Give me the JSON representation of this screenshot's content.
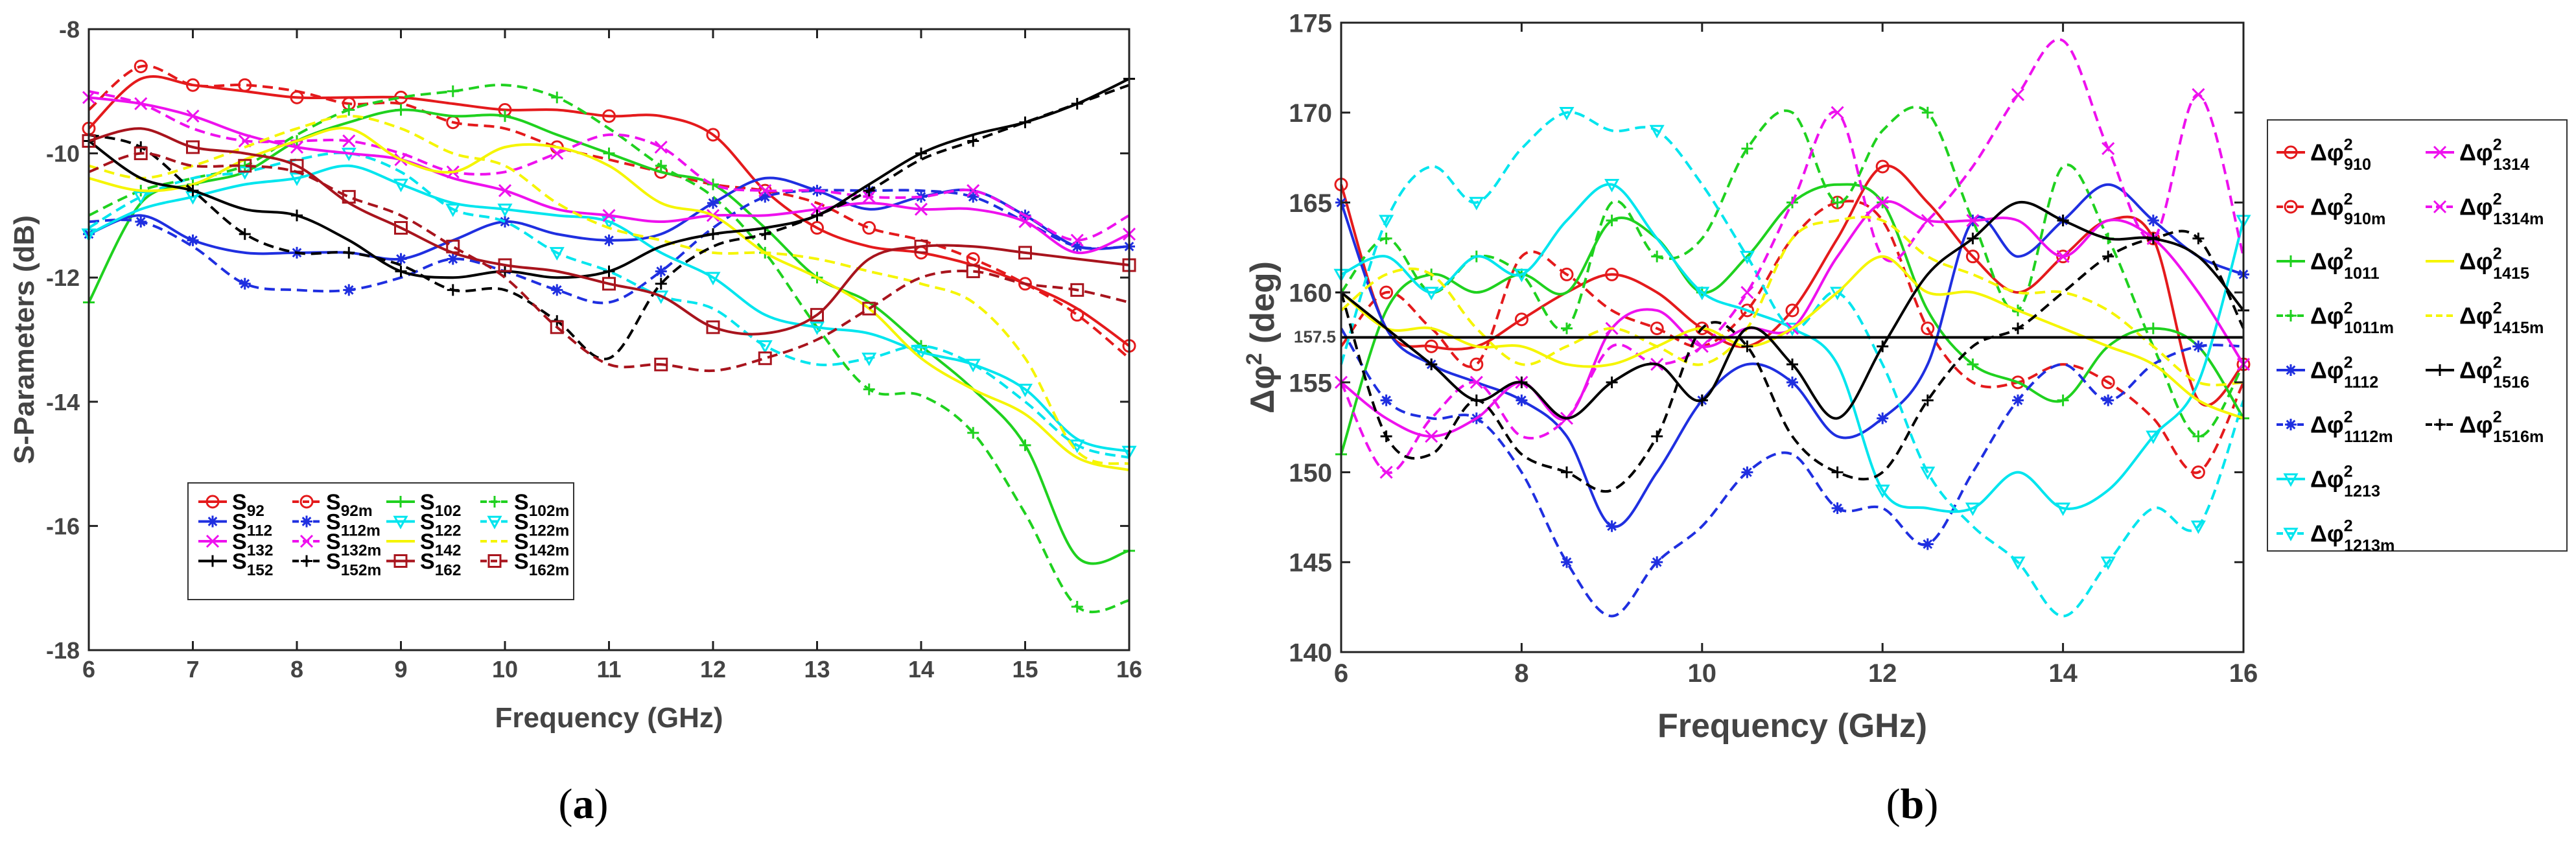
{
  "panels": [
    {
      "id": "a",
      "paren_open": "(",
      "letter": "a",
      "paren_close": ")"
    },
    {
      "id": "b",
      "paren_open": "(",
      "letter": "b",
      "paren_close": ")"
    }
  ],
  "chart_data": [
    {
      "type": "line",
      "panel": "a",
      "xlabel": "Frequency (GHz)",
      "ylabel": "S-Parameters (dB)",
      "xlim": [
        6,
        16
      ],
      "ylim": [
        -18,
        -8
      ],
      "xticks": [
        "6",
        "7",
        "8",
        "9",
        "10",
        "11",
        "12",
        "13",
        "14",
        "15",
        "16"
      ],
      "yticks": [
        "-18",
        "-16",
        "-14",
        "-12",
        "-10",
        "-8"
      ],
      "x": [
        6,
        6.5,
        7,
        7.5,
        8,
        8.5,
        9,
        9.5,
        10,
        10.5,
        11,
        11.5,
        12,
        12.5,
        13,
        13.5,
        14,
        14.5,
        15,
        15.5,
        16
      ],
      "series": [
        {
          "name": "S",
          "sub": "92",
          "color": "#e41a1c",
          "dash": false,
          "marker": "circle",
          "values": [
            -9.6,
            -8.8,
            -8.9,
            -9.0,
            -9.1,
            -9.1,
            -9.1,
            -9.2,
            -9.3,
            -9.3,
            -9.4,
            -9.4,
            -9.7,
            -10.6,
            -11.2,
            -11.5,
            -11.6,
            -11.8,
            -12.1,
            -12.5,
            -13.1
          ]
        },
        {
          "name": "S",
          "sub": "92m",
          "color": "#e41a1c",
          "dash": true,
          "marker": "circle",
          "values": [
            -9.3,
            -8.6,
            -8.9,
            -8.9,
            -9.0,
            -9.2,
            -9.2,
            -9.5,
            -9.6,
            -9.9,
            -10.1,
            -10.3,
            -10.5,
            -10.6,
            -10.8,
            -11.2,
            -11.4,
            -11.7,
            -12.1,
            -12.6,
            -13.3
          ]
        },
        {
          "name": "S",
          "sub": "102",
          "color": "#1fd11f",
          "dash": false,
          "marker": "plus",
          "values": [
            -12.4,
            -10.8,
            -10.5,
            -10.3,
            -9.8,
            -9.5,
            -9.3,
            -9.4,
            -9.4,
            -9.7,
            -10.0,
            -10.3,
            -10.5,
            -11.2,
            -12.0,
            -12.4,
            -13.1,
            -13.8,
            -14.7,
            -16.5,
            -16.4
          ]
        },
        {
          "name": "S",
          "sub": "102m",
          "color": "#1fd11f",
          "dash": true,
          "marker": "plus",
          "values": [
            -11.0,
            -10.6,
            -10.4,
            -10.2,
            -9.7,
            -9.3,
            -9.1,
            -9.0,
            -8.9,
            -9.1,
            -9.6,
            -10.2,
            -10.7,
            -11.6,
            -12.8,
            -13.8,
            -13.9,
            -14.5,
            -15.8,
            -17.3,
            -17.2
          ]
        },
        {
          "name": "S",
          "sub": "112",
          "color": "#1f2fe0",
          "dash": false,
          "marker": "star",
          "values": [
            -11.3,
            -11.0,
            -11.4,
            -11.6,
            -11.6,
            -11.6,
            -11.7,
            -11.4,
            -11.1,
            -11.3,
            -11.4,
            -11.3,
            -10.8,
            -10.4,
            -10.6,
            -10.9,
            -10.7,
            -10.6,
            -11.0,
            -11.5,
            -11.5
          ]
        },
        {
          "name": "S",
          "sub": "112m",
          "color": "#1f2fe0",
          "dash": true,
          "marker": "star",
          "values": [
            -11.1,
            -11.1,
            -11.5,
            -12.1,
            -12.2,
            -12.2,
            -12.0,
            -11.7,
            -11.9,
            -12.2,
            -12.4,
            -11.9,
            -11.2,
            -10.7,
            -10.6,
            -10.6,
            -10.6,
            -10.7,
            -11.1,
            -11.5,
            -11.5
          ]
        },
        {
          "name": "S",
          "sub": "122",
          "color": "#00e5ee",
          "dash": false,
          "marker": "tri",
          "values": [
            -11.3,
            -10.9,
            -10.7,
            -10.5,
            -10.4,
            -10.2,
            -10.5,
            -10.8,
            -10.9,
            -11.0,
            -11.1,
            -11.6,
            -12.0,
            -12.6,
            -12.8,
            -12.9,
            -13.2,
            -13.4,
            -13.8,
            -14.6,
            -14.8
          ]
        },
        {
          "name": "S",
          "sub": "122m",
          "color": "#00e5ee",
          "dash": true,
          "marker": "tri",
          "values": [
            -11.2,
            -10.7,
            -10.4,
            -10.3,
            -10.1,
            -10.0,
            -10.3,
            -10.9,
            -11.1,
            -11.6,
            -11.9,
            -12.3,
            -12.5,
            -13.1,
            -13.4,
            -13.3,
            -13.1,
            -13.4,
            -14.0,
            -14.7,
            -14.9
          ]
        },
        {
          "name": "S",
          "sub": "132",
          "color": "#ee11ee",
          "dash": false,
          "marker": "x",
          "values": [
            -9.1,
            -9.2,
            -9.4,
            -9.7,
            -9.9,
            -10.0,
            -10.1,
            -10.4,
            -10.6,
            -10.9,
            -11.0,
            -11.1,
            -11.0,
            -11.0,
            -10.9,
            -10.8,
            -10.9,
            -10.9,
            -11.1,
            -11.6,
            -11.3
          ]
        },
        {
          "name": "S",
          "sub": "132m",
          "color": "#ee11ee",
          "dash": true,
          "marker": "x",
          "values": [
            -9.0,
            -9.2,
            -9.6,
            -9.8,
            -9.8,
            -9.8,
            -10.0,
            -10.3,
            -10.3,
            -10.0,
            -9.7,
            -9.9,
            -10.5,
            -10.6,
            -10.6,
            -10.7,
            -10.7,
            -10.6,
            -11.0,
            -11.4,
            -11.0
          ]
        },
        {
          "name": "S",
          "sub": "142",
          "color": "#f5f500",
          "dash": false,
          "marker": "none",
          "values": [
            -10.4,
            -10.6,
            -10.5,
            -10.1,
            -9.8,
            -9.6,
            -10.1,
            -10.3,
            -9.9,
            -9.9,
            -10.2,
            -10.8,
            -11.0,
            -11.6,
            -12.0,
            -12.5,
            -13.3,
            -13.8,
            -14.2,
            -14.9,
            -15.1
          ]
        },
        {
          "name": "S",
          "sub": "142m",
          "color": "#f5f500",
          "dash": true,
          "marker": "none",
          "values": [
            -10.2,
            -10.4,
            -10.2,
            -9.9,
            -9.6,
            -9.4,
            -9.6,
            -10.0,
            -10.2,
            -10.8,
            -11.2,
            -11.4,
            -11.6,
            -11.6,
            -11.7,
            -11.9,
            -12.1,
            -12.4,
            -13.3,
            -14.8,
            -15.0
          ]
        },
        {
          "name": "S",
          "sub": "152",
          "color": "#000000",
          "dash": false,
          "marker": "plus",
          "values": [
            -9.8,
            -10.4,
            -10.6,
            -10.9,
            -11.0,
            -11.4,
            -11.9,
            -12.0,
            -11.9,
            -12.0,
            -11.9,
            -11.5,
            -11.3,
            -11.2,
            -11.0,
            -10.5,
            -10.0,
            -9.7,
            -9.5,
            -9.2,
            -8.8
          ]
        },
        {
          "name": "S",
          "sub": "152m",
          "color": "#000000",
          "dash": true,
          "marker": "plus",
          "values": [
            -9.7,
            -9.9,
            -10.6,
            -11.3,
            -11.6,
            -11.6,
            -11.8,
            -12.2,
            -12.2,
            -12.7,
            -13.3,
            -12.1,
            -11.5,
            -11.3,
            -11.0,
            -10.6,
            -10.1,
            -9.8,
            -9.5,
            -9.2,
            -8.9
          ]
        },
        {
          "name": "S",
          "sub": "162",
          "color": "#a8141d",
          "dash": false,
          "marker": "square",
          "values": [
            -9.8,
            -9.6,
            -9.9,
            -10.0,
            -10.2,
            -10.8,
            -11.2,
            -11.6,
            -11.8,
            -11.9,
            -12.1,
            -12.3,
            -12.8,
            -12.9,
            -12.6,
            -11.7,
            -11.5,
            -11.5,
            -11.6,
            -11.7,
            -11.8
          ]
        },
        {
          "name": "S",
          "sub": "162m",
          "color": "#a8141d",
          "dash": true,
          "marker": "square",
          "values": [
            -10.3,
            -10.0,
            -10.2,
            -10.2,
            -10.3,
            -10.7,
            -11.0,
            -11.5,
            -12.0,
            -12.8,
            -13.4,
            -13.4,
            -13.5,
            -13.3,
            -13.0,
            -12.5,
            -12.0,
            -11.9,
            -12.1,
            -12.2,
            -12.4
          ]
        }
      ]
    },
    {
      "type": "line",
      "panel": "b",
      "xlabel": "Frequency (GHz)",
      "ylabel": "Δφ",
      "ylabel_sup": "2",
      "ylabel_unit": " (deg)",
      "xlim": [
        6,
        16
      ],
      "ylim": [
        140,
        175
      ],
      "xticks": [
        "6",
        "8",
        "10",
        "12",
        "14",
        "16"
      ],
      "yticks": [
        "140",
        "145",
        "150",
        "155",
        "160",
        "165",
        "170",
        "175"
      ],
      "ref_line": {
        "value": 157.5,
        "label": "157.5"
      },
      "x": [
        6,
        6.5,
        7,
        7.5,
        8,
        8.5,
        9,
        9.5,
        10,
        10.5,
        11,
        11.5,
        12,
        12.5,
        13,
        13.5,
        14,
        14.5,
        15,
        15.5,
        16
      ],
      "series": [
        {
          "name": "Δφ",
          "sup": "2",
          "sub": "910",
          "color": "#e41a1c",
          "dash": false,
          "marker": "circle",
          "values": [
            166,
            158,
            157,
            157,
            158.5,
            160,
            161,
            160,
            158,
            157,
            159,
            163,
            167,
            165,
            162,
            160,
            162,
            164,
            163,
            154,
            156
          ]
        },
        {
          "name": "Δφ",
          "sup": "2",
          "sub": "910m",
          "color": "#e41a1c",
          "dash": true,
          "marker": "circle",
          "values": [
            157,
            160,
            158,
            156,
            162,
            161,
            159,
            158,
            157,
            159,
            163,
            165,
            164,
            158,
            155,
            155,
            156,
            155,
            153,
            150,
            155
          ]
        },
        {
          "name": "Δφ",
          "sup": "2",
          "sub": "1011",
          "color": "#1fd11f",
          "dash": false,
          "marker": "plus",
          "values": [
            151,
            159,
            161,
            160,
            161,
            160,
            164,
            163,
            160,
            162,
            165,
            166,
            165,
            159,
            156,
            155,
            154,
            157,
            158,
            157,
            153
          ]
        },
        {
          "name": "Δφ",
          "sup": "2",
          "sub": "1011m",
          "color": "#1fd11f",
          "dash": true,
          "marker": "plus",
          "values": [
            160,
            163,
            160,
            162,
            161,
            158,
            165,
            162,
            163,
            168,
            170,
            165,
            169,
            170,
            164,
            159,
            167,
            163,
            157,
            152,
            156
          ]
        },
        {
          "name": "Δφ",
          "sup": "2",
          "sub": "1112",
          "color": "#1f2fe0",
          "dash": false,
          "marker": "star",
          "values": [
            165,
            158,
            156,
            155,
            154,
            152,
            147,
            150,
            154,
            156,
            155,
            152,
            153,
            156,
            164,
            162,
            164,
            166,
            164,
            162,
            161
          ]
        },
        {
          "name": "Δφ",
          "sup": "2",
          "sub": "1112m",
          "color": "#1f2fe0",
          "dash": true,
          "marker": "star",
          "values": [
            158,
            154,
            153,
            153,
            150,
            145,
            142,
            145,
            147,
            150,
            151,
            148,
            148,
            146,
            150,
            154,
            156,
            154,
            156,
            157,
            157
          ]
        },
        {
          "name": "Δφ",
          "sup": "2",
          "sub": "1213",
          "color": "#00e5ee",
          "dash": false,
          "marker": "tri",
          "values": [
            161,
            162,
            160,
            162,
            161,
            164,
            166,
            163,
            160,
            159,
            158,
            156,
            149,
            148,
            148,
            150,
            148,
            149,
            152,
            155,
            164
          ]
        },
        {
          "name": "Δφ",
          "sup": "2",
          "sub": "1213m",
          "color": "#00e5ee",
          "dash": true,
          "marker": "tri",
          "values": [
            156,
            164,
            167,
            165,
            168,
            170,
            169,
            169,
            166,
            162,
            158,
            160,
            156,
            150,
            147,
            145,
            142,
            145,
            148,
            147,
            154
          ]
        },
        {
          "name": "Δφ",
          "sup": "2",
          "sub": "1314",
          "color": "#ee11ee",
          "dash": false,
          "marker": "x",
          "values": [
            155,
            153,
            152,
            153,
            155,
            153,
            158,
            159,
            157,
            158,
            158,
            162,
            165,
            164,
            164,
            164,
            162,
            164,
            163,
            160,
            156
          ]
        },
        {
          "name": "Δφ",
          "sup": "2",
          "sub": "1314m",
          "color": "#ee11ee",
          "dash": true,
          "marker": "x",
          "values": [
            155,
            150,
            153,
            155,
            152,
            153,
            157,
            156,
            157,
            160,
            165,
            170,
            162,
            164,
            167,
            171,
            174,
            168,
            163,
            171,
            162
          ]
        },
        {
          "name": "Δφ",
          "sup": "2",
          "sub": "1415",
          "color": "#f5f500",
          "dash": false,
          "marker": "none",
          "values": [
            160,
            158,
            158,
            157,
            157,
            156,
            156,
            157,
            158,
            157,
            158,
            160,
            162,
            160,
            160,
            159,
            158,
            157,
            156,
            154,
            153
          ]
        },
        {
          "name": "Δφ",
          "sup": "2",
          "sub": "1415m",
          "color": "#f5f500",
          "dash": true,
          "marker": "none",
          "values": [
            159,
            161,
            161,
            158,
            156,
            157,
            158,
            157,
            156,
            158,
            163,
            164,
            164,
            162,
            161,
            160,
            160,
            159,
            157,
            155,
            155
          ]
        },
        {
          "name": "Δφ",
          "sup": "2",
          "sub": "1516",
          "color": "#000000",
          "dash": false,
          "marker": "plus",
          "values": [
            160,
            158,
            156,
            154,
            155,
            153,
            155,
            156,
            154,
            158,
            156,
            153,
            157,
            161,
            163,
            165,
            164,
            163,
            163,
            162,
            159
          ]
        },
        {
          "name": "Δφ",
          "sup": "2",
          "sub": "1516m",
          "color": "#000000",
          "dash": true,
          "marker": "plus",
          "values": [
            160,
            152,
            151,
            154,
            151,
            150,
            149,
            152,
            158,
            157,
            152,
            150,
            150,
            154,
            157,
            158,
            160,
            162,
            163,
            163,
            158
          ]
        }
      ]
    }
  ]
}
